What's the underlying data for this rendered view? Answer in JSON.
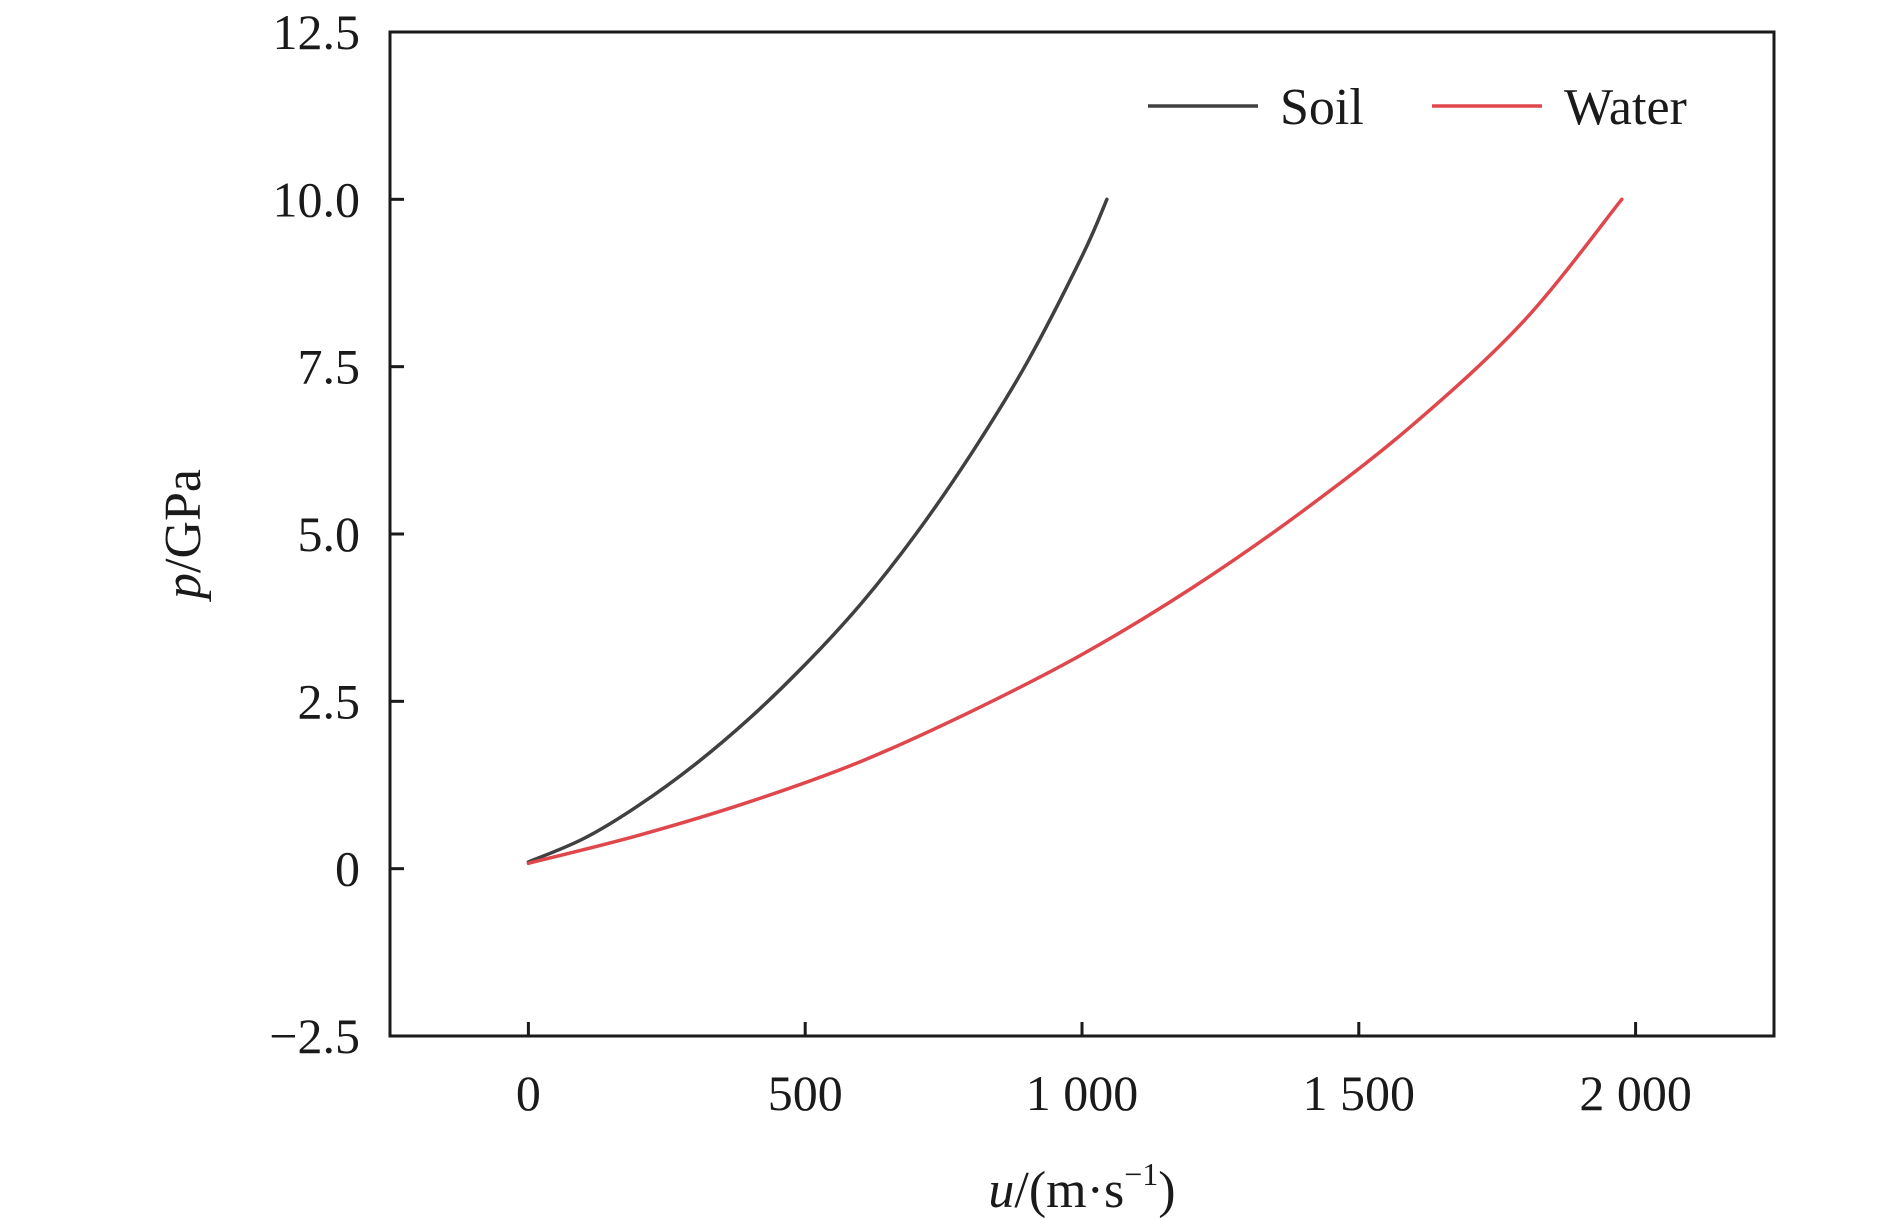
{
  "chart_data": {
    "type": "line",
    "title": "",
    "xlabel": {
      "var": "u",
      "rest": "/(m·s",
      "sup": "−1",
      "close": ")"
    },
    "ylabel": {
      "var": "p",
      "rest": "/GPa"
    },
    "xlim": [
      -250,
      2250
    ],
    "ylim": [
      -2.5,
      12.5
    ],
    "xticks": [
      0,
      500,
      1000,
      1500,
      2000
    ],
    "xtick_labels": [
      "0",
      "500",
      "1 000",
      "1 500",
      "2 000"
    ],
    "yticks": [
      -2.5,
      0,
      2.5,
      5.0,
      7.5,
      10.0,
      12.5
    ],
    "ytick_labels": [
      "−2.5",
      "0",
      "2.5",
      "5.0",
      "7.5",
      "10.0",
      "12.5"
    ],
    "grid": false,
    "legend": "top-right",
    "series": [
      {
        "name": "Soil",
        "color": "#404040",
        "x": [
          0,
          100,
          200,
          300,
          400,
          500,
          600,
          700,
          800,
          900,
          1000,
          1045
        ],
        "y": [
          0.1,
          0.45,
          0.95,
          1.55,
          2.25,
          3.05,
          3.95,
          5.0,
          6.2,
          7.55,
          9.15,
          10.0
        ]
      },
      {
        "name": "Water",
        "color": "#e0474c",
        "x": [
          0,
          200,
          400,
          600,
          800,
          1000,
          1200,
          1400,
          1600,
          1800,
          1975
        ],
        "y": [
          0.08,
          0.5,
          1.0,
          1.6,
          2.35,
          3.2,
          4.2,
          5.35,
          6.65,
          8.2,
          10.0
        ]
      }
    ]
  }
}
